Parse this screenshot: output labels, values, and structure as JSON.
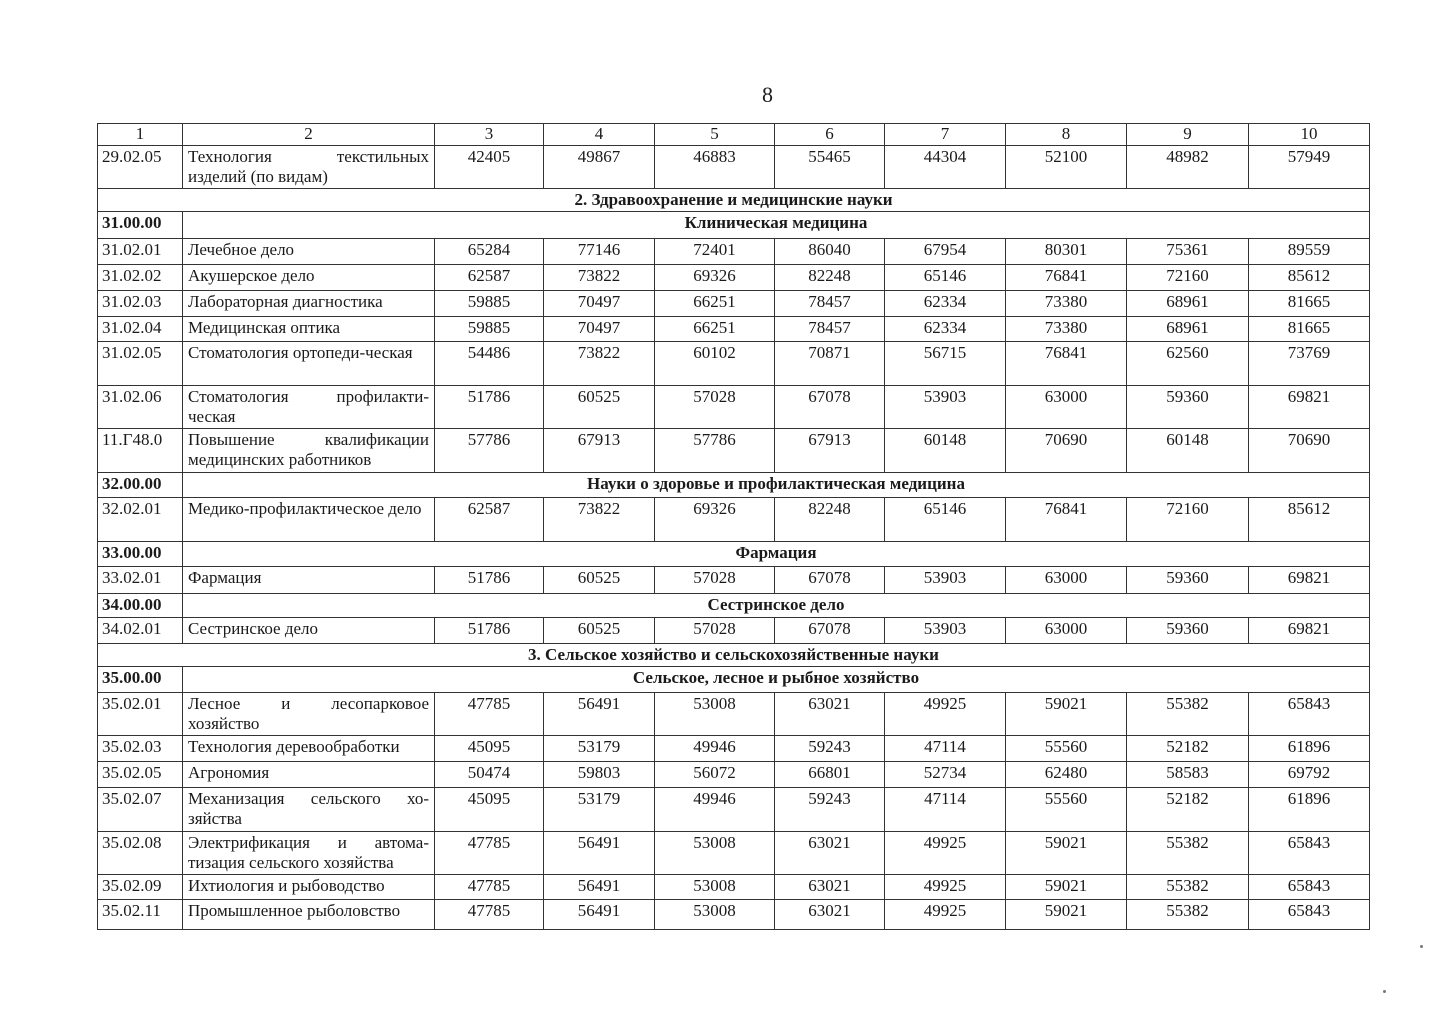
{
  "page_number": "8",
  "header": [
    "1",
    "2",
    "3",
    "4",
    "5",
    "6",
    "7",
    "8",
    "9",
    "10"
  ],
  "rows": [
    {
      "type": "row",
      "code": "29.02.05",
      "name": "Технология текстильных изделий (по видам)",
      "values": [
        "42405",
        "49867",
        "46883",
        "55465",
        "44304",
        "52100",
        "48982",
        "57949"
      ]
    },
    {
      "type": "section",
      "title": "2. Здравоохранение и медицинские науки"
    },
    {
      "type": "group",
      "code": "31.00.00",
      "title": "Клиническая медицина"
    },
    {
      "type": "row",
      "code": "31.02.01",
      "name": "Лечебное дело",
      "values": [
        "65284",
        "77146",
        "72401",
        "86040",
        "67954",
        "80301",
        "75361",
        "89559"
      ]
    },
    {
      "type": "row",
      "code": "31.02.02",
      "name": "Акушерское дело",
      "values": [
        "62587",
        "73822",
        "69326",
        "82248",
        "65146",
        "76841",
        "72160",
        "85612"
      ]
    },
    {
      "type": "row",
      "code": "31.02.03",
      "name": "Лабораторная диагностика",
      "values": [
        "59885",
        "70497",
        "66251",
        "78457",
        "62334",
        "73380",
        "68961",
        "81665"
      ]
    },
    {
      "type": "row",
      "code": "31.02.04",
      "name": "Медицинская оптика",
      "values": [
        "59885",
        "70497",
        "66251",
        "78457",
        "62334",
        "73380",
        "68961",
        "81665"
      ]
    },
    {
      "type": "row",
      "code": "31.02.05",
      "name": "Стоматология ортопеди-ческая",
      "values": [
        "54486",
        "73822",
        "60102",
        "70871",
        "56715",
        "76841",
        "62560",
        "73769"
      ]
    },
    {
      "type": "row",
      "code": "31.02.06",
      "name": "Стоматология профилакти-ческая",
      "values": [
        "51786",
        "60525",
        "57028",
        "67078",
        "53903",
        "63000",
        "59360",
        "69821"
      ]
    },
    {
      "type": "row",
      "code": "11.Г48.0",
      "name": "Повышение квалификации медицинских работников",
      "values": [
        "57786",
        "67913",
        "57786",
        "67913",
        "60148",
        "70690",
        "60148",
        "70690"
      ]
    },
    {
      "type": "group",
      "code": "32.00.00",
      "title": "Науки о здоровье и профилактическая медицина"
    },
    {
      "type": "row",
      "code": "32.02.01",
      "name": "Медико-профилактическое дело",
      "values": [
        "62587",
        "73822",
        "69326",
        "82248",
        "65146",
        "76841",
        "72160",
        "85612"
      ]
    },
    {
      "type": "group",
      "code": "33.00.00",
      "title": "Фармация"
    },
    {
      "type": "row",
      "code": "33.02.01",
      "name": "Фармация",
      "values": [
        "51786",
        "60525",
        "57028",
        "67078",
        "53903",
        "63000",
        "59360",
        "69821"
      ]
    },
    {
      "type": "group",
      "code": "34.00.00",
      "title": "Сестринское дело"
    },
    {
      "type": "row",
      "code": "34.02.01",
      "name": "Сестринское дело",
      "values": [
        "51786",
        "60525",
        "57028",
        "67078",
        "53903",
        "63000",
        "59360",
        "69821"
      ]
    },
    {
      "type": "section",
      "title": "3. Сельское хозяйство и сельскохозяйственные науки"
    },
    {
      "type": "group",
      "code": "35.00.00",
      "title": "Сельское, лесное и рыбное хозяйство"
    },
    {
      "type": "row",
      "code": "35.02.01",
      "name": "Лесное и лесопарковое хозяйство",
      "values": [
        "47785",
        "56491",
        "53008",
        "63021",
        "49925",
        "59021",
        "55382",
        "65843"
      ]
    },
    {
      "type": "row",
      "code": "35.02.03",
      "name": "Технология деревообработки",
      "values": [
        "45095",
        "53179",
        "49946",
        "59243",
        "47114",
        "55560",
        "52182",
        "61896"
      ]
    },
    {
      "type": "row",
      "code": "35.02.05",
      "name": "Агрономия",
      "values": [
        "50474",
        "59803",
        "56072",
        "66801",
        "52734",
        "62480",
        "58583",
        "69792"
      ]
    },
    {
      "type": "row",
      "code": "35.02.07",
      "name": "Механизация сельского хо-зяйства",
      "values": [
        "45095",
        "53179",
        "49946",
        "59243",
        "47114",
        "55560",
        "52182",
        "61896"
      ]
    },
    {
      "type": "row",
      "code": "35.02.08",
      "name": "Электрификация и автома-тизация сельского хозяйства",
      "values": [
        "47785",
        "56491",
        "53008",
        "63021",
        "49925",
        "59021",
        "55382",
        "65843"
      ]
    },
    {
      "type": "row",
      "code": "35.02.09",
      "name": "Ихтиология и рыбоводство",
      "values": [
        "47785",
        "56491",
        "53008",
        "63021",
        "49925",
        "59021",
        "55382",
        "65843"
      ]
    },
    {
      "type": "row",
      "code": "35.02.11",
      "name": "Промышленное рыболовство",
      "values": [
        "47785",
        "56491",
        "53008",
        "63021",
        "49925",
        "59021",
        "55382",
        "65843"
      ]
    }
  ]
}
